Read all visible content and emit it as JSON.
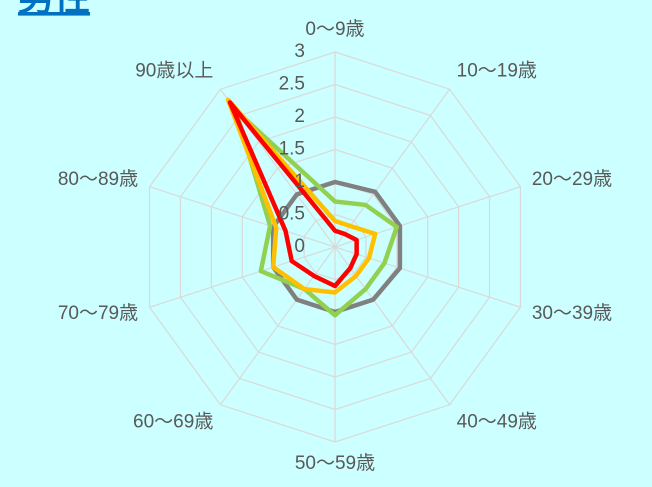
{
  "chart_data": {
    "type": "radar",
    "title": "男性",
    "categories": [
      "0〜9歳",
      "10〜19歳",
      "20〜29歳",
      "30〜39歳",
      "40〜49歳",
      "50〜59歳",
      "60〜69歳",
      "70〜79歳",
      "80〜89歳",
      "90歳以上"
    ],
    "series": [
      {
        "color": "#808080",
        "values": [
          1.0,
          1.05,
          1.05,
          1.05,
          1.0,
          1.0,
          1.0,
          1.0,
          1.0,
          1.0
        ]
      },
      {
        "color": "#92d050",
        "values": [
          0.7,
          0.8,
          1.0,
          0.8,
          0.8,
          1.05,
          0.8,
          1.2,
          1.05,
          2.6
        ]
      },
      {
        "color": "#ffc000",
        "values": [
          0.4,
          0.4,
          0.65,
          0.55,
          0.55,
          0.7,
          0.8,
          1.0,
          0.95,
          2.8
        ]
      },
      {
        "color": "#ff0000",
        "values": [
          0.25,
          0.25,
          0.35,
          0.35,
          0.4,
          0.6,
          0.55,
          0.7,
          0.8,
          2.75
        ]
      }
    ],
    "rlim": [
      0,
      3
    ],
    "rticks": [
      0,
      0.5,
      1,
      1.5,
      2,
      2.5,
      3
    ],
    "grid": true
  }
}
